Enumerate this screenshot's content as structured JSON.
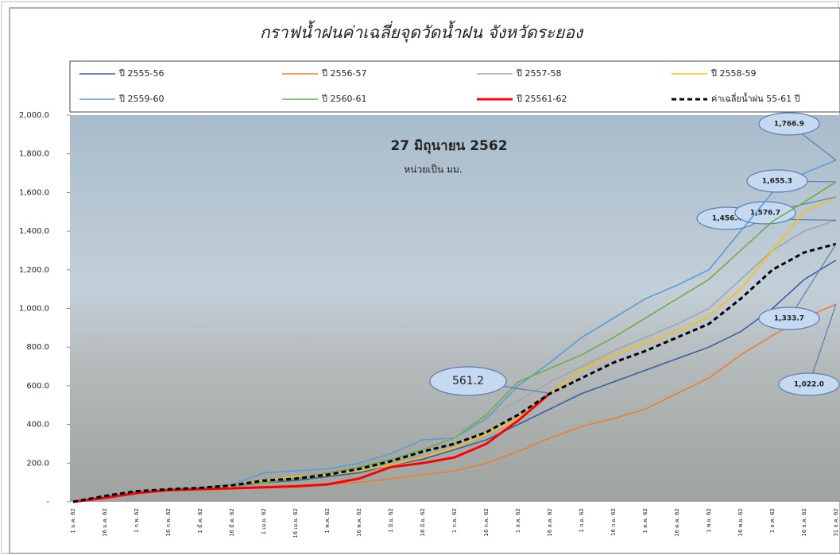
{
  "chart_data": {
    "type": "line",
    "title": "กราฟน้ำฝนค่าเฉลี่ยจุดวัดน้ำฝน  จังหวัดระยอง",
    "annotations": [
      "27 มิถุนายน 2562",
      "หน่วยเป็น มม."
    ],
    "categories": [
      "1 ม.ค. 62",
      "16 ม.ค. 62",
      "1 ก.พ. 62",
      "16 ก.พ. 62",
      "1 มี.ค. 62",
      "16 มี.ค. 62",
      "1 เม.ย. 62",
      "16 เม.ย. 62",
      "1 พ.ค. 62",
      "16 พ.ค. 62",
      "1 มิ.ย. 62",
      "16 มิ.ย. 62",
      "1 ก.ค. 62",
      "16 ก.ค. 62",
      "1 ส.ค. 62",
      "16 ส.ค. 62",
      "1 ก.ย. 62",
      "16 ก.ย. 62",
      "1 ต.ค. 62",
      "16 ต.ค. 62",
      "1 พ.ย. 62",
      "16 พ.ย. 62",
      "1 ธ.ค. 62",
      "16 ธ.ค. 62",
      "31 ธ.ค. 62"
    ],
    "ylim": [
      0,
      2000
    ],
    "yticks": [
      {
        "value": 0,
        "label": "-"
      },
      {
        "value": 200,
        "label": "200.0"
      },
      {
        "value": 400,
        "label": "400.0"
      },
      {
        "value": 600,
        "label": "600.0"
      },
      {
        "value": 800,
        "label": "800.0"
      },
      {
        "value": 1000,
        "label": "1,000.0"
      },
      {
        "value": 1200,
        "label": "1,200.0"
      },
      {
        "value": 1400,
        "label": "1,400.0"
      },
      {
        "value": 1600,
        "label": "1,600.0"
      },
      {
        "value": 1800,
        "label": "1,800.0"
      },
      {
        "value": 2000,
        "label": "2,000.0"
      }
    ],
    "grid": false,
    "series": [
      {
        "name": "ปี 2555-56",
        "color": "#3a5fa0",
        "values": [
          0,
          25,
          50,
          60,
          70,
          80,
          100,
          110,
          130,
          150,
          190,
          220,
          270,
          320,
          400,
          480,
          560,
          620,
          680,
          740,
          800,
          880,
          1000,
          1150,
          1250
        ]
      },
      {
        "name": "ปี 2556-57",
        "color": "#ed7d31",
        "values": [
          0,
          20,
          45,
          60,
          65,
          70,
          80,
          85,
          90,
          100,
          120,
          140,
          160,
          200,
          260,
          330,
          390,
          430,
          480,
          560,
          640,
          760,
          860,
          950,
          1022.0
        ],
        "value_labels": [
          null,
          null,
          null,
          null,
          null,
          null,
          null,
          null,
          null,
          null,
          null,
          null,
          null,
          null,
          null,
          null,
          null,
          null,
          null,
          null,
          null,
          null,
          null,
          null,
          "1,022.0"
        ]
      },
      {
        "name": "ปี 2557-58",
        "color": "#a5a5a5",
        "values": [
          0,
          30,
          55,
          70,
          80,
          90,
          130,
          140,
          160,
          190,
          240,
          300,
          360,
          440,
          520,
          620,
          700,
          780,
          850,
          920,
          1000,
          1150,
          1300,
          1400,
          1456.4
        ],
        "value_labels": [
          null,
          null,
          null,
          null,
          null,
          null,
          null,
          null,
          null,
          null,
          null,
          null,
          null,
          null,
          null,
          null,
          null,
          null,
          null,
          null,
          null,
          null,
          null,
          null,
          "1,456.4"
        ]
      },
      {
        "name": "ปี 2558-59",
        "color": "#ffc000",
        "values": [
          0,
          25,
          50,
          60,
          70,
          80,
          110,
          130,
          140,
          160,
          190,
          230,
          280,
          350,
          430,
          560,
          680,
          760,
          820,
          880,
          960,
          1100,
          1300,
          1500,
          1576.7
        ],
        "value_labels": [
          null,
          null,
          null,
          null,
          null,
          null,
          null,
          null,
          null,
          null,
          null,
          null,
          null,
          null,
          null,
          null,
          null,
          null,
          null,
          null,
          null,
          null,
          null,
          null,
          "1,576.7"
        ]
      },
      {
        "name": "ปี 2559-60",
        "color": "#5b9bd5",
        "values": [
          0,
          30,
          55,
          65,
          75,
          90,
          150,
          160,
          170,
          200,
          250,
          320,
          330,
          430,
          600,
          720,
          850,
          950,
          1050,
          1120,
          1200,
          1400,
          1600,
          1700,
          1766.9
        ],
        "value_labels": [
          null,
          null,
          null,
          null,
          null,
          null,
          null,
          null,
          null,
          null,
          null,
          null,
          null,
          null,
          null,
          null,
          null,
          null,
          null,
          null,
          null,
          null,
          null,
          null,
          "1,766.9"
        ]
      },
      {
        "name": "ปี 2560-61",
        "color": "#70ad47",
        "values": [
          0,
          25,
          50,
          60,
          70,
          85,
          100,
          120,
          150,
          180,
          220,
          270,
          330,
          450,
          620,
          690,
          760,
          850,
          950,
          1050,
          1150,
          1300,
          1450,
          1550,
          1655.3
        ],
        "value_labels": [
          null,
          null,
          null,
          null,
          null,
          null,
          null,
          null,
          null,
          null,
          null,
          null,
          null,
          null,
          null,
          null,
          null,
          null,
          null,
          null,
          null,
          null,
          null,
          null,
          "1,655.3"
        ]
      },
      {
        "name": "ปี 25561-62",
        "color": "#ff0000",
        "values": [
          0,
          20,
          45,
          60,
          65,
          70,
          75,
          80,
          90,
          120,
          180,
          200,
          230,
          300,
          420,
          561.2,
          null,
          null,
          null,
          null,
          null,
          null,
          null,
          null,
          null
        ]
      },
      {
        "name": "ค่าเฉลี่ยน้ำฝน 55-61 ปี",
        "color": "#000000",
        "dashed": true,
        "values": [
          0,
          30,
          55,
          65,
          72,
          85,
          110,
          120,
          140,
          170,
          210,
          260,
          300,
          360,
          450,
          560,
          640,
          720,
          780,
          850,
          920,
          1050,
          1200,
          1290,
          1333.7
        ],
        "value_labels": [
          null,
          null,
          null,
          null,
          null,
          null,
          null,
          null,
          null,
          null,
          null,
          null,
          null,
          null,
          null,
          null,
          null,
          null,
          null,
          null,
          null,
          null,
          null,
          null,
          "1,333.7"
        ]
      }
    ]
  }
}
